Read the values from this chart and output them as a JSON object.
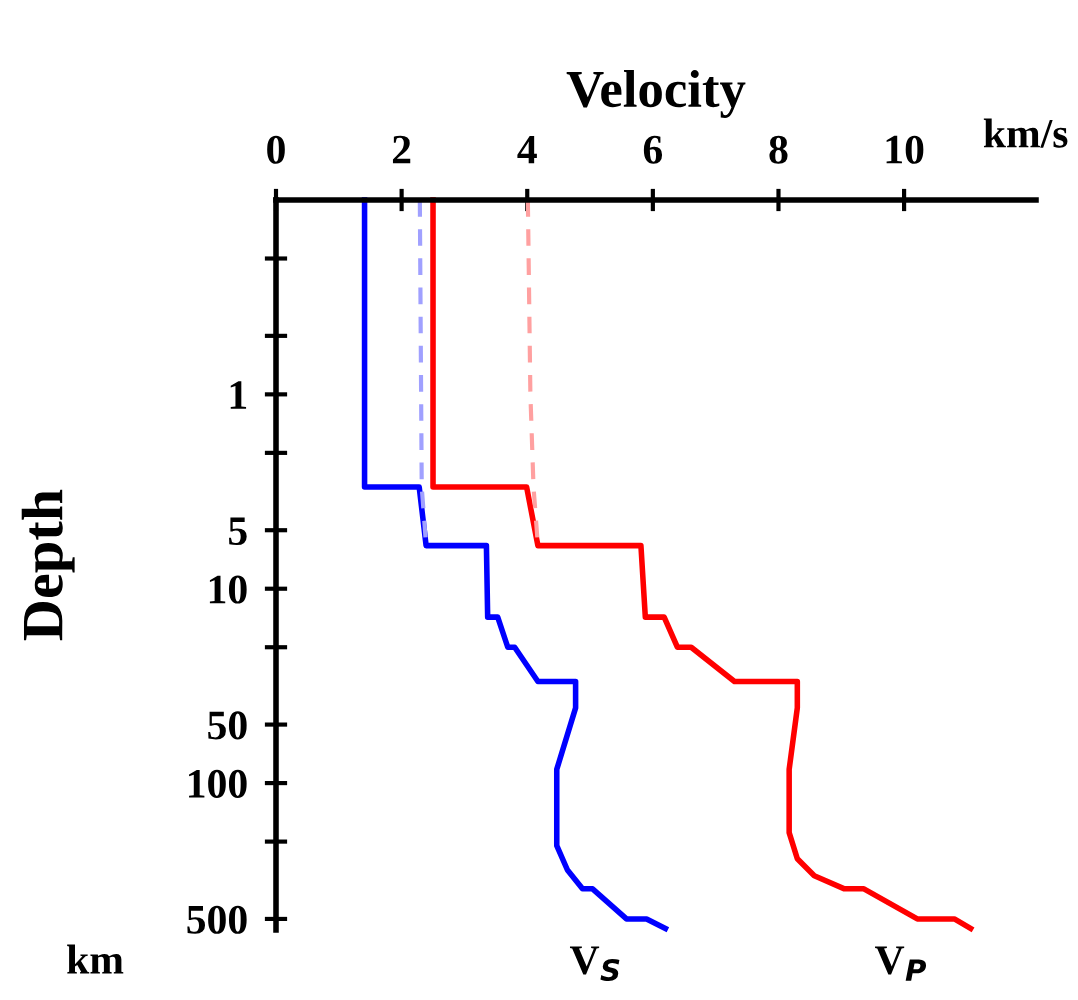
{
  "chart_data": {
    "type": "line",
    "xlabel": "Velocity",
    "ylabel": "Depth",
    "annotations": [
      "km/s",
      "km"
    ],
    "xlim": [
      0,
      12.1
    ],
    "xticks": [
      0,
      2,
      4,
      6,
      8,
      10
    ],
    "ylim": [
      570,
      0.1
    ],
    "log": "y",
    "yticks": [
      {
        "value": 0.2,
        "label": null
      },
      {
        "value": 0.5,
        "label": null
      },
      1,
      {
        "value": 2,
        "label": null
      },
      5,
      10,
      {
        "value": 20,
        "label": null
      },
      50,
      100,
      {
        "value": 200,
        "label": null
      },
      500
    ],
    "grid": false,
    "legend": false,
    "marker": "none",
    "series": [
      {
        "name": "V$_{S}$",
        "color": "#0000ff",
        "x": [
          1.41,
          1.41,
          2.28,
          2.39,
          3.35,
          3.37,
          3.53,
          3.69,
          3.8,
          4.17,
          4.77,
          4.77,
          4.47,
          4.47,
          4.64,
          4.88,
          5.04,
          5.58,
          5.9,
          6.2
        ],
        "values": [
          0.1,
          3,
          3,
          6,
          6,
          14,
          14,
          20,
          20,
          30,
          30,
          41,
          85,
          210,
          280,
          350,
          350,
          500,
          500,
          560
        ]
      },
      {
        "name": "V$_{P}$",
        "color": "#ff0000",
        "x": [
          2.5,
          2.5,
          3.99,
          4.17,
          5.81,
          5.88,
          6.18,
          6.39,
          6.61,
          7.3,
          8.3,
          8.3,
          8.17,
          8.17,
          8.3,
          8.57,
          9.05,
          9.36,
          10.21,
          10.8,
          11.06
        ],
        "values": [
          0.1,
          3,
          3,
          6,
          6,
          14,
          14,
          20,
          20,
          30,
          30,
          41,
          85,
          180,
          245,
          300,
          350,
          350,
          500,
          500,
          560
        ]
      },
      {
        "color": "#a0a0ff",
        "line_style": "dashed",
        "x": [
          2.29,
          2.32,
          2.39
        ],
        "values": [
          0.1,
          3,
          6
        ]
      },
      {
        "color": "#ffa0a0",
        "line_style": "dashed",
        "x": [
          4.01,
          4.05,
          4.1,
          4.17
        ],
        "values": [
          0.1,
          1,
          3,
          6
        ]
      }
    ]
  }
}
